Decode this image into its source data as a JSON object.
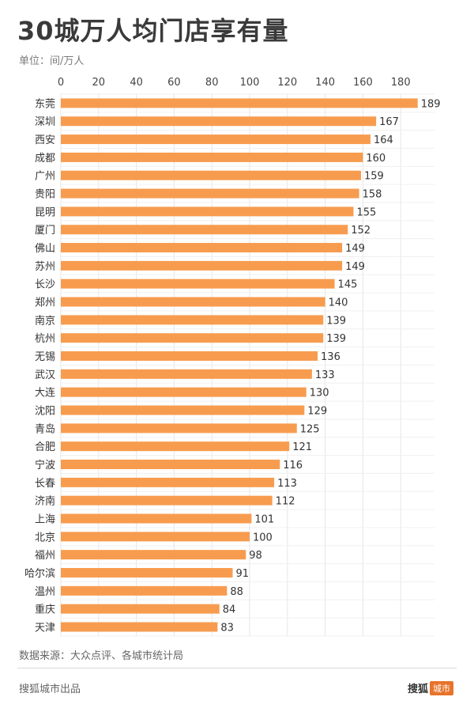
{
  "header": {
    "title": "30城万人均门店享有量",
    "unit": "单位：间/万人"
  },
  "footer": {
    "source": "数据来源：大众点评、各城市统计局",
    "producer": "搜狐城市出品",
    "brand_main": "搜狐",
    "brand_badge": "城市"
  },
  "colors": {
    "bar": "#f79c4f",
    "grid": "#e6e6e6",
    "text": "#333333"
  },
  "chart_data": {
    "type": "bar",
    "orientation": "horizontal",
    "categories": [
      "东莞",
      "深圳",
      "西安",
      "成都",
      "广州",
      "贵阳",
      "昆明",
      "厦门",
      "佛山",
      "苏州",
      "长沙",
      "郑州",
      "南京",
      "杭州",
      "无锡",
      "武汉",
      "大连",
      "沈阳",
      "青岛",
      "合肥",
      "宁波",
      "长春",
      "济南",
      "上海",
      "北京",
      "福州",
      "哈尔滨",
      "温州",
      "重庆",
      "天津"
    ],
    "values": [
      189,
      167,
      164,
      160,
      159,
      158,
      155,
      152,
      149,
      149,
      145,
      140,
      139,
      139,
      136,
      133,
      130,
      129,
      125,
      121,
      116,
      113,
      112,
      101,
      100,
      98,
      91,
      88,
      84,
      83
    ],
    "xlim": [
      0,
      200
    ],
    "xticks": [
      0,
      20,
      40,
      60,
      80,
      100,
      120,
      140,
      160,
      180
    ],
    "axis_position": "top",
    "grid": true,
    "data_labels": true
  }
}
